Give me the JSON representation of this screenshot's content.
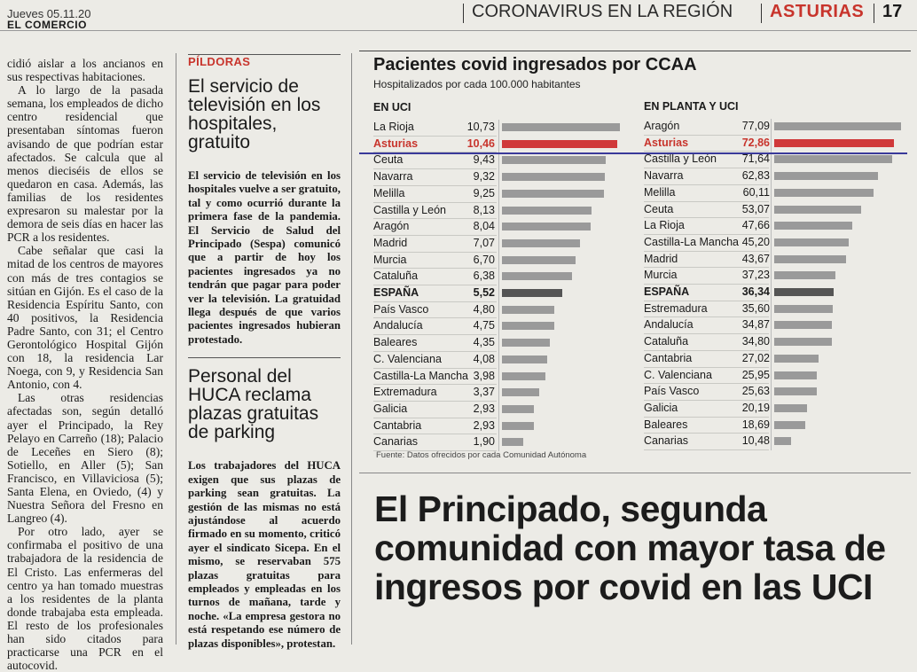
{
  "header": {
    "date": "Jueves 05.11.20",
    "paper": "EL COMERCIO",
    "section": "CORONAVIRUS EN LA REGIÓN",
    "region": "ASTURIAS",
    "page": "17"
  },
  "column1": {
    "paragraphs": [
      "cidió aislar a los ancianos en sus respectivas habitaciones.",
      "A lo largo de la pasada semana, los empleados de dicho centro residencial que presentaban síntomas fueron avisando de que podrían estar afectados. Se calcula que al menos dieciséis de ellos se quedaron en casa. Además, las familias de los residentes expresaron su malestar por la demora de seis días en hacer las PCR a los residentes.",
      "Cabe señalar que casi la mitad de los centros de mayores con más de tres contagios se sitúan en Gijón. Es el caso de la Residencia Espíritu Santo, con 40 positivos, la Residencia Padre Santo, con 31; el Centro Gerontológico Hospital Gijón con 18, la residencia Lar Noega, con 9, y Residencia San Antonio, con 4.",
      "Las otras residencias afectadas son, según detalló ayer el Principado, la Rey Pelayo en Carreño (18); Palacio de Leceñes en Siero (8); Sotiello, en Aller (5); San Francisco, en Villaviciosa (5); Santa Elena, en Oviedo, (4) y Nuestra Señora del Fresno en Langreo (4).",
      "Por otro lado, ayer se confirmaba el positivo de una trabajadora de la residencia de El Cristo. Las enfermeras del centro ya han tomado muestras a los residentes de la planta donde trabajaba esta empleada. El resto de los profesionales han sido citados para practicarse una PCR en el autocovid."
    ]
  },
  "column2": {
    "kicker": "PÍLDORAS",
    "story1_title": "El servicio de televisión en los hospitales, gratuito",
    "story1_body": "El servicio de televisión en los hospitales vuelve a ser gratuito, tal y como ocurrió durante la primera fase de la pandemia. El Servicio de Salud del Principado (Sespa) comunicó que a partir de hoy los pacientes ingresados ya no tendrán que pagar para poder ver la televisión. La gratuidad llega después de que varios pacientes ingresados hubieran protestado.",
    "story2_title": "Personal del HUCA reclama plazas gratuitas de parking",
    "story2_body": "Los trabajadores del HUCA exigen que sus plazas de parking sean gratuitas. La gestión de las mismas no está ajustándose al acuerdo firmado en su momento, criticó ayer el sindicato Sicepa. En el mismo, se reservaban 575 plazas gratuitas para empleados y empleadas en los turnos de mañana, tarde y noche. «La empresa gestora no está respetando ese número de plazas disponibles», protestan."
  },
  "chart": {
    "title": "Pacientes covid ingresados por CCAA",
    "subtitle": "Hospitalizados por cada 100.000 habitantes",
    "source": "Fuente: Datos ofrecidos por cada Comunidad Autónoma",
    "highlight_color": "#d0393a",
    "bar_color": "#9a9a9a",
    "spain_color": "#555555"
  },
  "chart_data": [
    {
      "type": "bar",
      "title": "EN UCI",
      "categories": [
        "La Rioja",
        "Asturias",
        "Ceuta",
        "Navarra",
        "Melilla",
        "Castilla y León",
        "Aragón",
        "Madrid",
        "Murcia",
        "Cataluña",
        "ESPAÑA",
        "País Vasco",
        "Andalucía",
        "Baleares",
        "C. Valenciana",
        "Castilla-La Mancha",
        "Extremadura",
        "Galicia",
        "Cantabria",
        "Canarias"
      ],
      "labels": [
        "10,73",
        "10,46",
        "9,43",
        "9,32",
        "9,25",
        "8,13",
        "8,04",
        "7,07",
        "6,70",
        "6,38",
        "5,52",
        "4,80",
        "4,75",
        "4,35",
        "4,08",
        "3,98",
        "3,37",
        "2,93",
        "2,93",
        "1,90"
      ],
      "values": [
        10.73,
        10.46,
        9.43,
        9.32,
        9.25,
        8.13,
        8.04,
        7.07,
        6.7,
        6.38,
        5.52,
        4.8,
        4.75,
        4.35,
        4.08,
        3.98,
        3.37,
        2.93,
        2.93,
        1.9
      ]
    },
    {
      "type": "bar",
      "title": "EN PLANTA Y UCI",
      "categories": [
        "Aragón",
        "Asturias",
        "Castilla y León",
        "Navarra",
        "Melilla",
        "Ceuta",
        "La Rioja",
        "Castilla-La Mancha",
        "Madrid",
        "Murcia",
        "ESPAÑA",
        "Estremadura",
        "Andalucía",
        "Cataluña",
        "Cantabria",
        "C. Valenciana",
        "País Vasco",
        "Galicia",
        "Baleares",
        "Canarias"
      ],
      "labels": [
        "77,09",
        "72,86",
        "71,64",
        "62,83",
        "60,11",
        "53,07",
        "47,66",
        "45,20",
        "43,67",
        "37,23",
        "36,34",
        "35,60",
        "34,87",
        "34,80",
        "27,02",
        "25,95",
        "25,63",
        "20,19",
        "18,69",
        "10,48"
      ],
      "values": [
        77.09,
        72.86,
        71.64,
        62.83,
        60.11,
        53.07,
        47.66,
        45.2,
        43.67,
        37.23,
        36.34,
        35.6,
        34.87,
        34.8,
        27.02,
        25.95,
        25.63,
        20.19,
        18.69,
        10.48
      ]
    }
  ],
  "headline": "El Principado, segunda comunidad con mayor tasa de ingresos por covid en las UCI"
}
